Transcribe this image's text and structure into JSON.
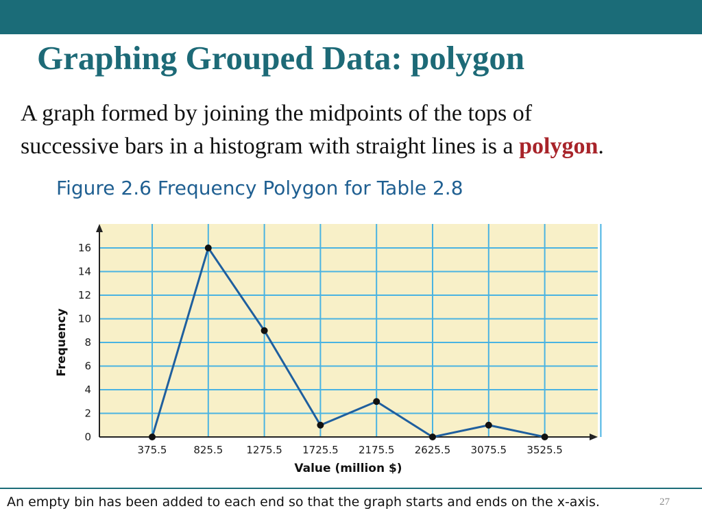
{
  "slide": {
    "title": "Graphing Grouped Data: polygon",
    "body_line1": "A graph formed by joining the midpoints of the tops of",
    "body_line2_before": "successive bars in a histogram with straight lines is a ",
    "body_key_term": "polygon",
    "body_line2_after": ".",
    "figure_caption": "Figure 2.6 Frequency Polygon for Table 2.8",
    "footer_note": "An empty bin has been added to each end so that the graph starts and ends on the x-axis.",
    "page_number": "27"
  },
  "colors": {
    "header_bar": "#1b6c78",
    "title": "#1d6a77",
    "key_term": "#a8242a",
    "caption": "#1f5f91",
    "plot_background": "#f8f0c8",
    "grid": "#4ab3e2",
    "line": "#1f5f9e",
    "marker": "#111111"
  },
  "chart_data": {
    "type": "line",
    "title": "",
    "xlabel": "Value (million $)",
    "ylabel": "Frequency",
    "categories": [
      "375.5",
      "825.5",
      "1275.5",
      "1725.5",
      "2175.5",
      "2625.5",
      "3075.5",
      "3525.5"
    ],
    "values": [
      0,
      16,
      9,
      1,
      3,
      0,
      1,
      0
    ],
    "y_ticks": [
      0,
      2,
      4,
      6,
      8,
      10,
      12,
      14,
      16
    ],
    "ylim": [
      0,
      16
    ],
    "grid": true,
    "markers": true
  }
}
